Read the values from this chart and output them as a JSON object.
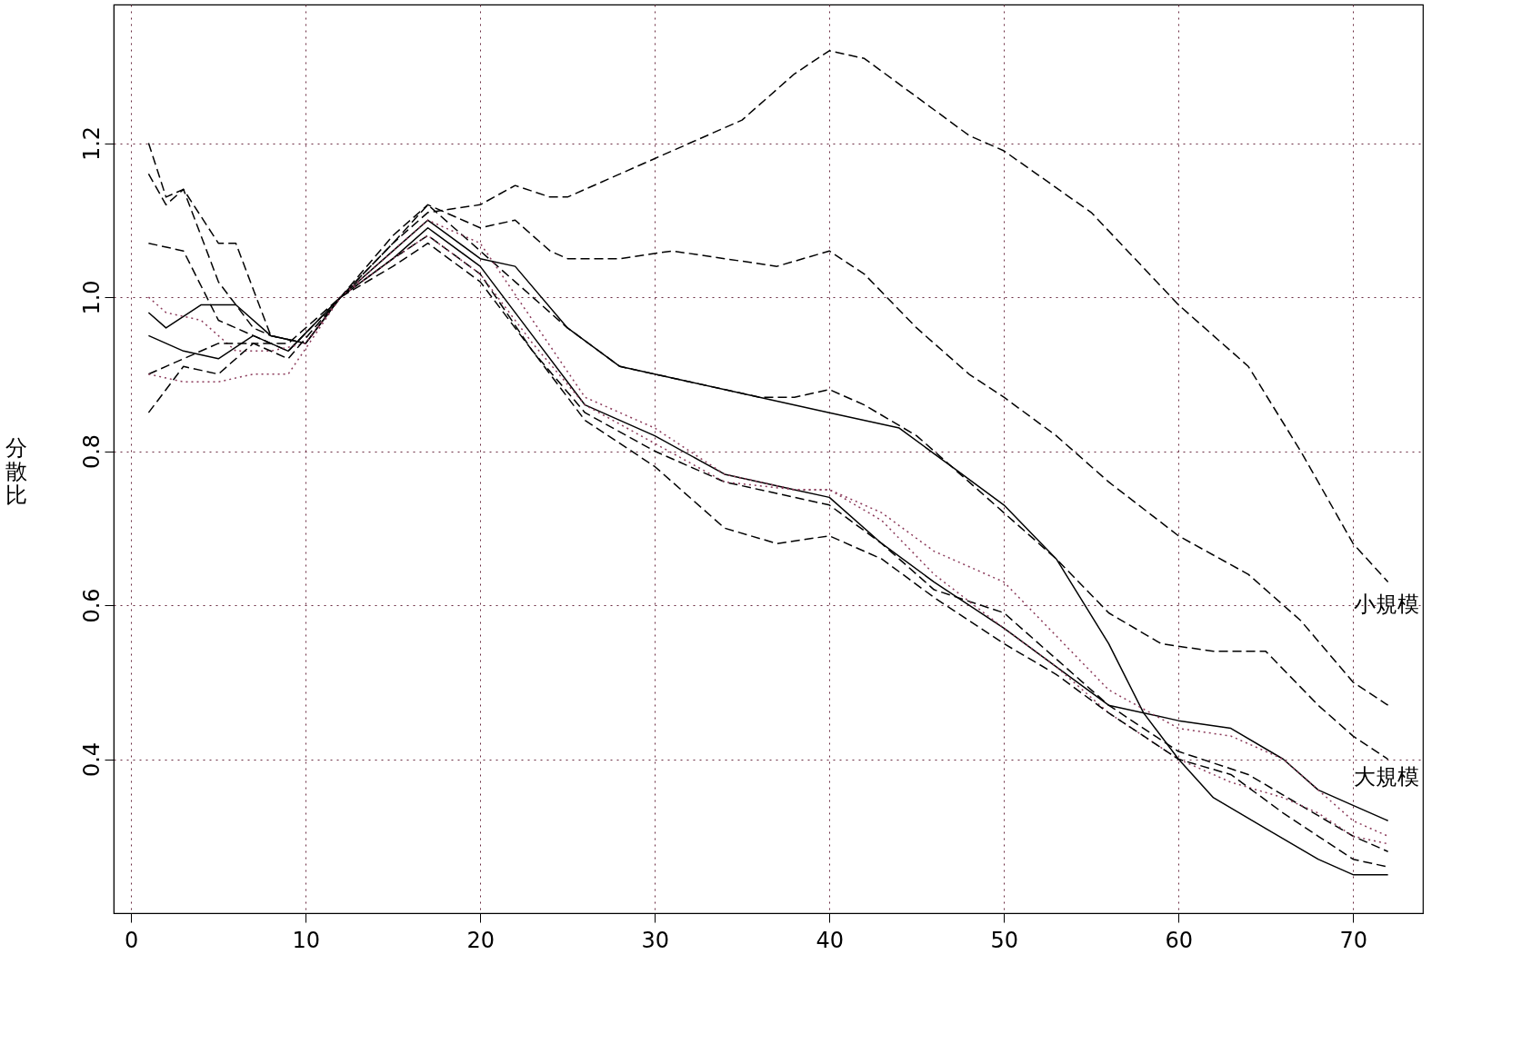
{
  "chart_data": {
    "type": "line",
    "ylabel": "分散比",
    "xlim": [
      -1,
      74
    ],
    "ylim": [
      0.2,
      1.38
    ],
    "xticks": [
      0,
      10,
      20,
      30,
      40,
      50,
      60,
      70
    ],
    "yticks": [
      {
        "value": 0.4,
        "label": "0.4"
      },
      {
        "value": 0.6,
        "label": "0.6"
      },
      {
        "value": 0.8,
        "label": "0.8"
      },
      {
        "value": 1.0,
        "label": "1.0"
      },
      {
        "value": 1.2,
        "label": "1.2"
      }
    ],
    "grid": true,
    "marker": "none",
    "annotations": [
      "小規模",
      "大規模"
    ],
    "series": [
      {
        "color": "#000000",
        "line_style": "dashed",
        "x": [
          1,
          2,
          3,
          5,
          6,
          8,
          10,
          12,
          15,
          17,
          20,
          22,
          24,
          25,
          30,
          35,
          38,
          40,
          42,
          45,
          48,
          50,
          55,
          60,
          64,
          67,
          70,
          72
        ],
        "values": [
          1.2,
          1.13,
          1.14,
          1.07,
          1.07,
          0.95,
          0.94,
          1.0,
          1.07,
          1.11,
          1.12,
          1.145,
          1.13,
          1.13,
          1.18,
          1.23,
          1.29,
          1.32,
          1.31,
          1.26,
          1.21,
          1.19,
          1.11,
          0.99,
          0.91,
          0.8,
          0.68,
          0.63
        ]
      },
      {
        "color": "#000000",
        "line_style": "dashed",
        "x": [
          1,
          2,
          3,
          5,
          7,
          8,
          10,
          12,
          15,
          17,
          20,
          22,
          24,
          25,
          28,
          31,
          34,
          37,
          40,
          42,
          45,
          48,
          50,
          53,
          56,
          60,
          64,
          67,
          70,
          72
        ],
        "values": [
          1.16,
          1.12,
          1.14,
          1.02,
          0.96,
          0.95,
          0.94,
          1.0,
          1.08,
          1.12,
          1.09,
          1.1,
          1.06,
          1.05,
          1.05,
          1.06,
          1.05,
          1.04,
          1.06,
          1.03,
          0.96,
          0.9,
          0.87,
          0.82,
          0.76,
          0.69,
          0.64,
          0.58,
          0.5,
          0.47
        ]
      },
      {
        "color": "#000000",
        "line_style": "dashed",
        "x": [
          1,
          3,
          5,
          7,
          9,
          12,
          15,
          17,
          20,
          22,
          25,
          28,
          32,
          36,
          38,
          40,
          42,
          45,
          48,
          50,
          53,
          56,
          59,
          62,
          65,
          68,
          70,
          72
        ],
        "values": [
          1.07,
          1.06,
          0.97,
          0.95,
          0.93,
          1.0,
          1.07,
          1.12,
          1.06,
          1.02,
          0.96,
          0.91,
          0.89,
          0.87,
          0.87,
          0.88,
          0.86,
          0.82,
          0.76,
          0.72,
          0.66,
          0.59,
          0.55,
          0.54,
          0.54,
          0.47,
          0.43,
          0.4
        ]
      },
      {
        "color": "#000000",
        "line_style": "solid",
        "x": [
          1,
          2,
          4,
          6,
          8,
          10,
          12,
          15,
          17,
          20,
          22,
          25,
          28,
          32,
          36,
          40,
          44,
          47,
          50,
          53,
          56,
          58,
          60,
          62,
          65,
          68,
          70,
          72
        ],
        "values": [
          0.98,
          0.96,
          0.99,
          0.99,
          0.95,
          0.94,
          1.0,
          1.06,
          1.1,
          1.05,
          1.04,
          0.96,
          0.91,
          0.89,
          0.87,
          0.85,
          0.83,
          0.78,
          0.73,
          0.66,
          0.55,
          0.46,
          0.4,
          0.35,
          0.31,
          0.27,
          0.25,
          0.25
        ]
      },
      {
        "color": "#000000",
        "line_style": "solid",
        "x": [
          1,
          3,
          5,
          7,
          9,
          12,
          15,
          17,
          20,
          23,
          26,
          30,
          34,
          38,
          40,
          43,
          46,
          50,
          53,
          56,
          60,
          63,
          66,
          68,
          70,
          72
        ],
        "values": [
          0.95,
          0.93,
          0.92,
          0.95,
          0.93,
          1.0,
          1.05,
          1.09,
          1.04,
          0.95,
          0.86,
          0.82,
          0.77,
          0.75,
          0.74,
          0.68,
          0.63,
          0.57,
          0.52,
          0.47,
          0.45,
          0.44,
          0.4,
          0.36,
          0.34,
          0.32
        ]
      },
      {
        "color": "#8b3a5a",
        "line_style": "dotted",
        "x": [
          1,
          2,
          4,
          6,
          8,
          10,
          12,
          15,
          17,
          20,
          23,
          26,
          30,
          34,
          38,
          40,
          43,
          46,
          50,
          53,
          56,
          60,
          63,
          66,
          68,
          70,
          72
        ],
        "values": [
          1.0,
          0.98,
          0.97,
          0.93,
          0.93,
          0.94,
          1.0,
          1.06,
          1.1,
          1.07,
          0.97,
          0.87,
          0.83,
          0.77,
          0.75,
          0.75,
          0.72,
          0.67,
          0.63,
          0.56,
          0.49,
          0.44,
          0.43,
          0.4,
          0.36,
          0.32,
          0.3
        ]
      },
      {
        "color": "#000000",
        "line_style": "dashed",
        "x": [
          1,
          3,
          5,
          7,
          9,
          12,
          15,
          17,
          20,
          23,
          26,
          30,
          34,
          38,
          40,
          43,
          46,
          50,
          53,
          56,
          60,
          64,
          67,
          70,
          72
        ],
        "values": [
          0.9,
          0.92,
          0.94,
          0.94,
          0.92,
          1.0,
          1.05,
          1.08,
          1.03,
          0.93,
          0.85,
          0.8,
          0.76,
          0.74,
          0.73,
          0.68,
          0.62,
          0.59,
          0.53,
          0.47,
          0.41,
          0.38,
          0.34,
          0.3,
          0.28
        ]
      },
      {
        "color": "#8b3a5a",
        "line_style": "dotted",
        "x": [
          1,
          3,
          5,
          7,
          9,
          12,
          15,
          17,
          20,
          23,
          26,
          30,
          34,
          38,
          40,
          43,
          46,
          50,
          53,
          56,
          60,
          63,
          66,
          68,
          70,
          72
        ],
        "values": [
          0.9,
          0.89,
          0.89,
          0.9,
          0.9,
          1.0,
          1.05,
          1.08,
          1.03,
          0.94,
          0.86,
          0.81,
          0.76,
          0.75,
          0.75,
          0.71,
          0.64,
          0.57,
          0.52,
          0.46,
          0.4,
          0.37,
          0.35,
          0.33,
          0.3,
          0.29
        ]
      },
      {
        "color": "#000000",
        "line_style": "dashed",
        "x": [
          1,
          3,
          5,
          7,
          9,
          12,
          15,
          17,
          20,
          23,
          26,
          30,
          34,
          37,
          40,
          43,
          46,
          50,
          53,
          56,
          60,
          63,
          66,
          68,
          70,
          72
        ],
        "values": [
          0.85,
          0.91,
          0.9,
          0.94,
          0.94,
          1.0,
          1.04,
          1.07,
          1.02,
          0.93,
          0.84,
          0.78,
          0.7,
          0.68,
          0.69,
          0.66,
          0.61,
          0.55,
          0.51,
          0.46,
          0.4,
          0.38,
          0.33,
          0.3,
          0.27,
          0.26
        ]
      }
    ]
  }
}
